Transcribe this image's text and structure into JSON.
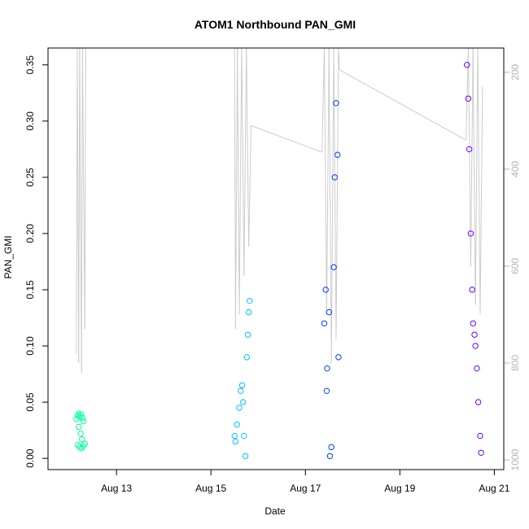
{
  "chart_data": {
    "type": "scatter",
    "title": "ATOM1 Northbound PAN_GMI",
    "xlabel": "Date",
    "ylabel": "PAN_GMI",
    "x_ticks": [
      "Aug 13",
      "Aug 15",
      "Aug 17",
      "Aug 19",
      "Aug 21"
    ],
    "x_tick_days": [
      13,
      15,
      17,
      19,
      21
    ],
    "xlim_days": [
      11.55,
      21.2
    ],
    "y_ticks": [
      0.0,
      0.05,
      0.1,
      0.15,
      0.2,
      0.25,
      0.3,
      0.35
    ],
    "ylim": [
      -0.01,
      0.365
    ],
    "y2_ticks": [
      200,
      400,
      600,
      800,
      1000
    ],
    "y2lim": [
      1020,
      150
    ],
    "grid": false,
    "legend": "none",
    "point_shape": "open-circle",
    "clusters": [
      {
        "day_start": 12.13,
        "day_end": 12.35,
        "color": "#00FF99",
        "samples": [
          {
            "x": 12.15,
            "y": 0.035
          },
          {
            "x": 12.18,
            "y": 0.038
          },
          {
            "x": 12.2,
            "y": 0.04
          },
          {
            "x": 12.22,
            "y": 0.037
          },
          {
            "x": 12.25,
            "y": 0.039
          },
          {
            "x": 12.28,
            "y": 0.036
          },
          {
            "x": 12.3,
            "y": 0.033
          },
          {
            "x": 12.2,
            "y": 0.028
          },
          {
            "x": 12.24,
            "y": 0.022
          },
          {
            "x": 12.27,
            "y": 0.017
          },
          {
            "x": 12.18,
            "y": 0.012
          },
          {
            "x": 12.22,
            "y": 0.01
          },
          {
            "x": 12.26,
            "y": 0.009
          },
          {
            "x": 12.3,
            "y": 0.011
          },
          {
            "x": 12.33,
            "y": 0.013
          }
        ]
      },
      {
        "day_start": 15.45,
        "day_end": 15.85,
        "color": "#00BFFF",
        "samples": [
          {
            "x": 15.5,
            "y": 0.02
          },
          {
            "x": 15.55,
            "y": 0.03
          },
          {
            "x": 15.6,
            "y": 0.045
          },
          {
            "x": 15.63,
            "y": 0.06
          },
          {
            "x": 15.66,
            "y": 0.065
          },
          {
            "x": 15.7,
            "y": 0.02
          },
          {
            "x": 15.73,
            "y": 0.002
          },
          {
            "x": 15.76,
            "y": 0.09
          },
          {
            "x": 15.78,
            "y": 0.11
          },
          {
            "x": 15.8,
            "y": 0.13
          },
          {
            "x": 15.82,
            "y": 0.14
          },
          {
            "x": 15.68,
            "y": 0.05
          },
          {
            "x": 15.52,
            "y": 0.015
          }
        ]
      },
      {
        "day_start": 17.38,
        "day_end": 17.72,
        "color": "#0040FF",
        "samples": [
          {
            "x": 17.4,
            "y": 0.12
          },
          {
            "x": 17.43,
            "y": 0.15
          },
          {
            "x": 17.46,
            "y": 0.08
          },
          {
            "x": 17.5,
            "y": 0.13
          },
          {
            "x": 17.52,
            "y": 0.002
          },
          {
            "x": 17.55,
            "y": 0.01
          },
          {
            "x": 17.6,
            "y": 0.17
          },
          {
            "x": 17.62,
            "y": 0.25
          },
          {
            "x": 17.65,
            "y": 0.316
          },
          {
            "x": 17.68,
            "y": 0.27
          },
          {
            "x": 17.7,
            "y": 0.09
          },
          {
            "x": 17.45,
            "y": 0.06
          }
        ]
      },
      {
        "day_start": 20.38,
        "day_end": 20.75,
        "color": "#6600FF",
        "samples": [
          {
            "x": 20.42,
            "y": 0.35
          },
          {
            "x": 20.45,
            "y": 0.32
          },
          {
            "x": 20.47,
            "y": 0.275
          },
          {
            "x": 20.5,
            "y": 0.2
          },
          {
            "x": 20.53,
            "y": 0.15
          },
          {
            "x": 20.55,
            "y": 0.12
          },
          {
            "x": 20.6,
            "y": 0.1
          },
          {
            "x": 20.63,
            "y": 0.08
          },
          {
            "x": 20.66,
            "y": 0.05
          },
          {
            "x": 20.7,
            "y": 0.02
          },
          {
            "x": 20.72,
            "y": 0.005
          },
          {
            "x": 20.58,
            "y": 0.11
          }
        ]
      }
    ],
    "grey_line": {
      "color": "#cccccc",
      "note": "secondary axis series (right axis, inverted)",
      "points": [
        {
          "x": 12.15,
          "y2": 780
        },
        {
          "x": 12.17,
          "y2": 150
        },
        {
          "x": 12.2,
          "y2": 800
        },
        {
          "x": 12.22,
          "y2": 150
        },
        {
          "x": 12.26,
          "y2": 820
        },
        {
          "x": 12.28,
          "y2": 150
        },
        {
          "x": 12.33,
          "y2": 730
        },
        {
          "x": 12.35,
          "y2": 150
        },
        {
          "x": 15.5,
          "y2": 150
        },
        {
          "x": 15.52,
          "y2": 730
        },
        {
          "x": 15.56,
          "y2": 150
        },
        {
          "x": 15.6,
          "y2": 700
        },
        {
          "x": 15.65,
          "y2": 150
        },
        {
          "x": 15.7,
          "y2": 620
        },
        {
          "x": 15.75,
          "y2": 150
        },
        {
          "x": 15.8,
          "y2": 560
        },
        {
          "x": 15.85,
          "y2": 310
        },
        {
          "x": 17.35,
          "y2": 365
        },
        {
          "x": 17.4,
          "y2": 150
        },
        {
          "x": 17.45,
          "y2": 700
        },
        {
          "x": 17.5,
          "y2": 150
        },
        {
          "x": 17.55,
          "y2": 800
        },
        {
          "x": 17.6,
          "y2": 150
        },
        {
          "x": 17.65,
          "y2": 750
        },
        {
          "x": 17.7,
          "y2": 150
        },
        {
          "x": 17.72,
          "y2": 195
        },
        {
          "x": 20.4,
          "y2": 340
        },
        {
          "x": 20.45,
          "y2": 150
        },
        {
          "x": 20.5,
          "y2": 600
        },
        {
          "x": 20.55,
          "y2": 150
        },
        {
          "x": 20.6,
          "y2": 680
        },
        {
          "x": 20.65,
          "y2": 150
        },
        {
          "x": 20.7,
          "y2": 700
        },
        {
          "x": 20.75,
          "y2": 230
        }
      ]
    }
  }
}
